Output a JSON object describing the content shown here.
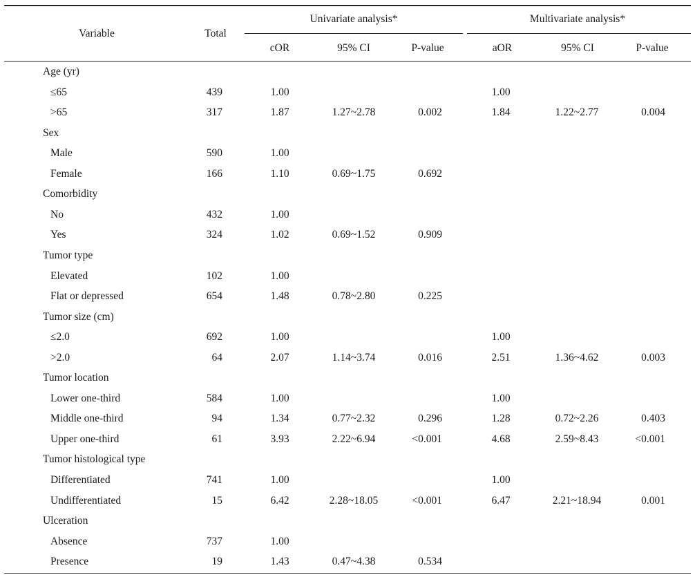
{
  "table": {
    "header": {
      "variable": "Variable",
      "total": "Total",
      "univariate": "Univariate analysis*",
      "multivariate": "Multivariate analysis*",
      "cor": "cOR",
      "ci_uni": "95% CI",
      "p_uni": "P-value",
      "aor": "aOR",
      "ci_multi": "95% CI",
      "p_multi": "P-value"
    },
    "rows": [
      {
        "kind": "group",
        "label": "Age (yr)"
      },
      {
        "kind": "data",
        "label": "≤65",
        "total": "439",
        "cor": "1.00",
        "ci_u": "",
        "p_u": "",
        "aor": "1.00",
        "ci_m": "",
        "p_m": ""
      },
      {
        "kind": "data",
        "label": ">65",
        "total": "317",
        "cor": "1.87",
        "ci_u": "1.27~2.78",
        "p_u": "0.002",
        "aor": "1.84",
        "ci_m": "1.22~2.77",
        "p_m": "0.004"
      },
      {
        "kind": "group",
        "label": "Sex"
      },
      {
        "kind": "data",
        "label": "Male",
        "total": "590",
        "cor": "1.00",
        "ci_u": "",
        "p_u": "",
        "aor": "",
        "ci_m": "",
        "p_m": ""
      },
      {
        "kind": "data",
        "label": "Female",
        "total": "166",
        "cor": "1.10",
        "ci_u": "0.69~1.75",
        "p_u": "0.692",
        "aor": "",
        "ci_m": "",
        "p_m": ""
      },
      {
        "kind": "group",
        "label": "Comorbidity"
      },
      {
        "kind": "data",
        "label": "No",
        "total": "432",
        "cor": "1.00",
        "ci_u": "",
        "p_u": "",
        "aor": "",
        "ci_m": "",
        "p_m": ""
      },
      {
        "kind": "data",
        "label": "Yes",
        "total": "324",
        "cor": "1.02",
        "ci_u": "0.69~1.52",
        "p_u": "0.909",
        "aor": "",
        "ci_m": "",
        "p_m": ""
      },
      {
        "kind": "group",
        "label": "Tumor type"
      },
      {
        "kind": "data",
        "label": "Elevated",
        "total": "102",
        "cor": "1.00",
        "ci_u": "",
        "p_u": "",
        "aor": "",
        "ci_m": "",
        "p_m": ""
      },
      {
        "kind": "data",
        "label": "Flat or depressed",
        "total": "654",
        "cor": "1.48",
        "ci_u": "0.78~2.80",
        "p_u": "0.225",
        "aor": "",
        "ci_m": "",
        "p_m": ""
      },
      {
        "kind": "group",
        "label": "Tumor size (cm)"
      },
      {
        "kind": "data",
        "label": "≤2.0",
        "total": "692",
        "cor": "1.00",
        "ci_u": "",
        "p_u": "",
        "aor": "1.00",
        "ci_m": "",
        "p_m": ""
      },
      {
        "kind": "data",
        "label": ">2.0",
        "total": "64",
        "cor": "2.07",
        "ci_u": "1.14~3.74",
        "p_u": "0.016",
        "aor": "2.51",
        "ci_m": "1.36~4.62",
        "p_m": "0.003"
      },
      {
        "kind": "group",
        "label": "Tumor location"
      },
      {
        "kind": "data",
        "label": "Lower one-third",
        "total": "584",
        "cor": "1.00",
        "ci_u": "",
        "p_u": "",
        "aor": "1.00",
        "ci_m": "",
        "p_m": ""
      },
      {
        "kind": "data",
        "label": "Middle one-third",
        "total": "94",
        "cor": "1.34",
        "ci_u": "0.77~2.32",
        "p_u": "0.296",
        "aor": "1.28",
        "ci_m": "0.72~2.26",
        "p_m": "0.403"
      },
      {
        "kind": "data",
        "label": "Upper one-third",
        "total": "61",
        "cor": "3.93",
        "ci_u": "2.22~6.94",
        "p_u": "<0.001",
        "aor": "4.68",
        "ci_m": "2.59~8.43",
        "p_m": "<0.001"
      },
      {
        "kind": "group",
        "label": "Tumor histological type"
      },
      {
        "kind": "data",
        "label": "Differentiated",
        "total": "741",
        "cor": "1.00",
        "ci_u": "",
        "p_u": "",
        "aor": "1.00",
        "ci_m": "",
        "p_m": ""
      },
      {
        "kind": "data",
        "label": "Undifferentiated",
        "total": "15",
        "cor": "6.42",
        "ci_u": "2.28~18.05",
        "p_u": "<0.001",
        "aor": "6.47",
        "ci_m": "2.21~18.94",
        "p_m": "0.001"
      },
      {
        "kind": "group",
        "label": "Ulceration"
      },
      {
        "kind": "data",
        "label": "Absence",
        "total": "737",
        "cor": "1.00",
        "ci_u": "",
        "p_u": "",
        "aor": "",
        "ci_m": "",
        "p_m": ""
      },
      {
        "kind": "data",
        "label": "Presence",
        "total": "19",
        "cor": "1.43",
        "ci_u": "0.47~4.38",
        "p_u": "0.534",
        "aor": "",
        "ci_m": "",
        "p_m": ""
      }
    ]
  }
}
